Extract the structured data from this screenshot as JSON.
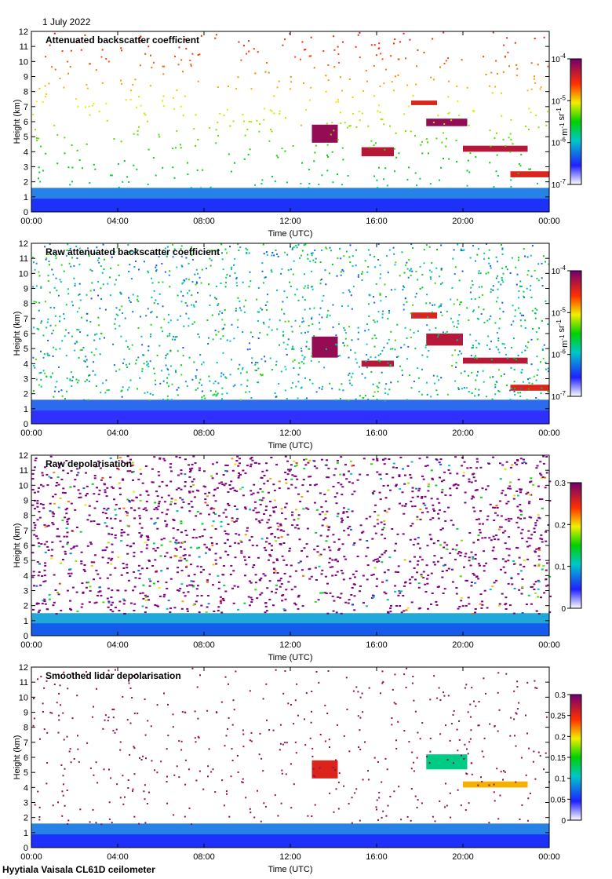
{
  "page": {
    "date_label": "1 July 2022",
    "footer": "Hyytiala Vaisala CL61D ceilometer"
  },
  "chart_data": [
    {
      "type": "heatmap",
      "title": "Attenuated backscatter coefficient",
      "xlabel": "Time (UTC)",
      "ylabel": "Height (km)",
      "x_ticks": [
        "00:00",
        "04:00",
        "08:00",
        "12:00",
        "16:00",
        "20:00",
        "00:00"
      ],
      "y_ticks": [
        "0",
        "1",
        "2",
        "3",
        "4",
        "5",
        "6",
        "7",
        "8",
        "9",
        "10",
        "11",
        "12"
      ],
      "xlim_hours": [
        0,
        24
      ],
      "ylim_km": [
        0,
        12
      ],
      "colorbar": {
        "scale": "log",
        "range": [
          1e-07,
          0.0001
        ],
        "tick_labels": [
          "10-7",
          "10-6",
          "10-5",
          "10-4"
        ],
        "tick_values": [
          1e-07,
          1e-06,
          1e-05,
          0.0001
        ],
        "units": "m-1 sr-1"
      },
      "features": [
        {
          "label": "boundary layer",
          "t_start": 0,
          "t_end": 24,
          "h_top": 1.6,
          "level": 0.15
        },
        {
          "label": "cloud layer",
          "t_start": 13.0,
          "t_end": 14.2,
          "h_top": 5.8,
          "h_bottom": 4.6,
          "level": 0.95
        },
        {
          "label": "cloud layer",
          "t_start": 15.3,
          "t_end": 16.8,
          "h_top": 4.3,
          "h_bottom": 3.7,
          "level": 0.9
        },
        {
          "label": "cloud layer",
          "t_start": 17.6,
          "t_end": 18.8,
          "h_top": 7.4,
          "h_bottom": 7.1,
          "level": 0.85
        },
        {
          "label": "cloud layer",
          "t_start": 18.3,
          "t_end": 20.2,
          "h_top": 6.2,
          "h_bottom": 5.7,
          "level": 0.95
        },
        {
          "label": "cloud layer",
          "t_start": 20.0,
          "t_end": 23.0,
          "h_top": 4.4,
          "h_bottom": 4.0,
          "level": 0.9
        },
        {
          "label": "cloud layer",
          "t_start": 22.2,
          "t_end": 24.0,
          "h_top": 2.7,
          "h_bottom": 2.3,
          "level": 0.85
        }
      ]
    },
    {
      "type": "heatmap",
      "title": "Raw attenuated backscatter coefficient",
      "xlabel": "Time (UTC)",
      "ylabel": "Height (km)",
      "x_ticks": [
        "00:00",
        "04:00",
        "08:00",
        "12:00",
        "16:00",
        "20:00",
        "00:00"
      ],
      "y_ticks": [
        "0",
        "1",
        "2",
        "3",
        "4",
        "5",
        "6",
        "7",
        "8",
        "9",
        "10",
        "11",
        "12"
      ],
      "xlim_hours": [
        0,
        24
      ],
      "ylim_km": [
        0,
        12
      ],
      "colorbar": {
        "scale": "log",
        "range": [
          1e-07,
          0.0001
        ],
        "tick_labels": [
          "10-7",
          "10-6",
          "10-5",
          "10-4"
        ],
        "tick_values": [
          1e-07,
          1e-06,
          1e-05,
          0.0001
        ],
        "units": "m-1 sr-1"
      },
      "features": [
        {
          "label": "boundary layer",
          "t_start": 0,
          "t_end": 24,
          "h_top": 1.6,
          "level": 0.12
        },
        {
          "label": "cloud layer",
          "t_start": 13.0,
          "t_end": 14.2,
          "h_top": 5.8,
          "h_bottom": 4.4,
          "level": 0.95
        },
        {
          "label": "cloud layer",
          "t_start": 15.3,
          "t_end": 16.8,
          "h_top": 4.2,
          "h_bottom": 3.8,
          "level": 0.9
        },
        {
          "label": "cloud layer",
          "t_start": 17.6,
          "t_end": 18.8,
          "h_top": 7.4,
          "h_bottom": 7.0,
          "level": 0.85
        },
        {
          "label": "cloud layer",
          "t_start": 18.3,
          "t_end": 20.0,
          "h_top": 6.0,
          "h_bottom": 5.2,
          "level": 0.9
        },
        {
          "label": "cloud layer",
          "t_start": 20.0,
          "t_end": 23.0,
          "h_top": 4.4,
          "h_bottom": 4.0,
          "level": 0.9
        },
        {
          "label": "cloud layer",
          "t_start": 22.2,
          "t_end": 24.0,
          "h_top": 2.6,
          "h_bottom": 2.2,
          "level": 0.85
        }
      ]
    },
    {
      "type": "heatmap",
      "title": "Raw depolarisation",
      "xlabel": "Time (UTC)",
      "ylabel": "Height (km)",
      "x_ticks": [
        "00:00",
        "04:00",
        "08:00",
        "12:00",
        "16:00",
        "20:00",
        "00:00"
      ],
      "y_ticks": [
        "0",
        "1",
        "2",
        "3",
        "4",
        "5",
        "6",
        "7",
        "8",
        "9",
        "10",
        "11",
        "12"
      ],
      "xlim_hours": [
        0,
        24
      ],
      "ylim_km": [
        0,
        12
      ],
      "colorbar": {
        "scale": "linear",
        "range": [
          0,
          0.3
        ],
        "tick_labels": [
          "0",
          "0.1",
          "0.2",
          "0.3"
        ],
        "tick_values": [
          0,
          0.1,
          0.2,
          0.3
        ],
        "units": ""
      },
      "features": [
        {
          "label": "boundary layer",
          "t_start": 0,
          "t_end": 24,
          "h_top": 1.5,
          "level": 0.2
        },
        {
          "label": "noise field",
          "t_start": 0,
          "t_end": 24,
          "h_top": 12,
          "h_bottom": 1.5,
          "level": 1.0
        }
      ]
    },
    {
      "type": "heatmap",
      "title": "Smoothed lidar depolarisation",
      "xlabel": "Time (UTC)",
      "ylabel": "Height (km)",
      "x_ticks": [
        "00:00",
        "04:00",
        "08:00",
        "12:00",
        "16:00",
        "20:00",
        "00:00"
      ],
      "y_ticks": [
        "0",
        "1",
        "2",
        "3",
        "4",
        "5",
        "6",
        "7",
        "8",
        "9",
        "10",
        "11",
        "12"
      ],
      "xlim_hours": [
        0,
        24
      ],
      "ylim_km": [
        0,
        12
      ],
      "colorbar": {
        "scale": "linear",
        "range": [
          0,
          0.3
        ],
        "tick_labels": [
          "0",
          "0.05",
          "0.1",
          "0.15",
          "0.2",
          "0.25",
          "0.3"
        ],
        "tick_values": [
          0,
          0.05,
          0.1,
          0.15,
          0.2,
          0.25,
          0.3
        ],
        "units": ""
      },
      "features": [
        {
          "label": "boundary layer",
          "t_start": 0,
          "t_end": 24,
          "h_top": 1.6,
          "level": 0.15
        },
        {
          "label": "cloud layer",
          "t_start": 13.0,
          "t_end": 14.2,
          "h_top": 5.8,
          "h_bottom": 4.6,
          "level": 0.85
        },
        {
          "label": "cloud layer",
          "t_start": 18.3,
          "t_end": 20.2,
          "h_top": 6.2,
          "h_bottom": 5.2,
          "level": 0.4
        },
        {
          "label": "cloud layer",
          "t_start": 20.0,
          "t_end": 23.0,
          "h_top": 4.4,
          "h_bottom": 4.0,
          "level": 0.7
        }
      ]
    }
  ]
}
